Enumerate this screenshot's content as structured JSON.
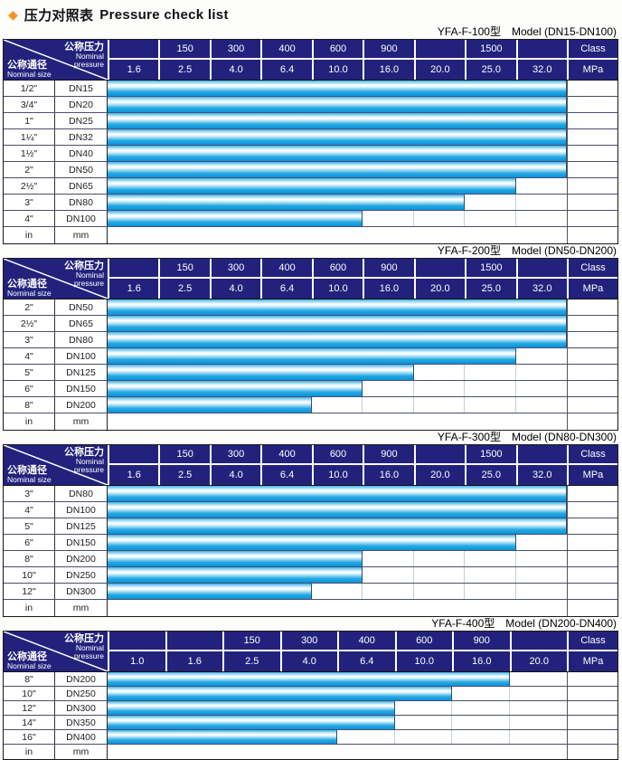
{
  "title": {
    "diamond_icon": "◆",
    "text_zh": "压力对照表",
    "text_en": "Pressure check list"
  },
  "corner": {
    "pressure_zh": "公称压力",
    "pressure_en_line1": "Nominal",
    "pressure_en_line2": "pressure",
    "size_zh": "公称通径",
    "size_en": "Nominal size"
  },
  "colors": {
    "header_bg": "#22227d",
    "bar_cyan": "#149fe1",
    "bar_highlight": "#ffffff",
    "diamond_orange": "#f7941d"
  },
  "tables": [
    {
      "model": "YFA-F-100型",
      "range": "Model (DN15-DN100)",
      "class_row": [
        "",
        "150",
        "300",
        "400",
        "600",
        "900",
        "",
        "1500",
        "",
        "Class"
      ],
      "mpa_row": [
        "1.6",
        "2.5",
        "4.0",
        "6.4",
        "10.0",
        "16.0",
        "20.0",
        "25.0",
        "32.0",
        "MPa"
      ],
      "rows": [
        {
          "inch": "1/2\"",
          "dn": "DN15",
          "bar_cols": 9
        },
        {
          "inch": "3/4\"",
          "dn": "DN20",
          "bar_cols": 9
        },
        {
          "inch": "1\"",
          "dn": "DN25",
          "bar_cols": 9
        },
        {
          "inch": "1¼\"",
          "dn": "DN32",
          "bar_cols": 9
        },
        {
          "inch": "1½\"",
          "dn": "DN40",
          "bar_cols": 9
        },
        {
          "inch": "2\"",
          "dn": "DN50",
          "bar_cols": 9
        },
        {
          "inch": "2½\"",
          "dn": "DN65",
          "bar_cols": 8
        },
        {
          "inch": "3\"",
          "dn": "DN80",
          "bar_cols": 7
        },
        {
          "inch": "4\"",
          "dn": "DN100",
          "bar_cols": 5
        },
        {
          "inch": "in",
          "dn": "mm",
          "bar_cols": 0,
          "unit_row": true
        }
      ]
    },
    {
      "model": "YFA-F-200型",
      "range": "Model (DN50-DN200)",
      "class_row": [
        "",
        "150",
        "300",
        "400",
        "600",
        "900",
        "",
        "1500",
        "",
        "Class"
      ],
      "mpa_row": [
        "1.6",
        "2.5",
        "4.0",
        "6.4",
        "10.0",
        "16.0",
        "20.0",
        "25.0",
        "32.0",
        "MPa"
      ],
      "rows": [
        {
          "inch": "2\"",
          "dn": "DN50",
          "bar_cols": 9
        },
        {
          "inch": "2½\"",
          "dn": "DN65",
          "bar_cols": 9
        },
        {
          "inch": "3\"",
          "dn": "DN80",
          "bar_cols": 9
        },
        {
          "inch": "4\"",
          "dn": "DN100",
          "bar_cols": 8
        },
        {
          "inch": "5\"",
          "dn": "DN125",
          "bar_cols": 6
        },
        {
          "inch": "6\"",
          "dn": "DN150",
          "bar_cols": 5
        },
        {
          "inch": "8\"",
          "dn": "DN200",
          "bar_cols": 4
        },
        {
          "inch": "in",
          "dn": "mm",
          "bar_cols": 0,
          "unit_row": true
        }
      ]
    },
    {
      "model": "YFA-F-300型",
      "range": "Model (DN80-DN300)",
      "class_row": [
        "",
        "150",
        "300",
        "400",
        "600",
        "900",
        "",
        "1500",
        "",
        "Class"
      ],
      "mpa_row": [
        "1.6",
        "2.5",
        "4.0",
        "6.4",
        "10.0",
        "16.0",
        "20.0",
        "25.0",
        "32.0",
        "MPa"
      ],
      "rows": [
        {
          "inch": "3\"",
          "dn": "DN80",
          "bar_cols": 9
        },
        {
          "inch": "4\"",
          "dn": "DN100",
          "bar_cols": 9
        },
        {
          "inch": "5\"",
          "dn": "DN125",
          "bar_cols": 9
        },
        {
          "inch": "6\"",
          "dn": "DN150",
          "bar_cols": 8
        },
        {
          "inch": "8\"",
          "dn": "DN200",
          "bar_cols": 5
        },
        {
          "inch": "10\"",
          "dn": "DN250",
          "bar_cols": 5
        },
        {
          "inch": "12\"",
          "dn": "DN300",
          "bar_cols": 4
        },
        {
          "inch": "in",
          "dn": "mm",
          "bar_cols": 0,
          "unit_row": true
        }
      ]
    },
    {
      "model": "YFA-F-400型",
      "range": "Model (DN200-DN400)",
      "class_row": [
        "",
        "",
        "150",
        "300",
        "400",
        "600",
        "900",
        "",
        "Class"
      ],
      "mpa_row": [
        "1.0",
        "1.6",
        "2.5",
        "4.0",
        "6.4",
        "10.0",
        "16.0",
        "20.0",
        "MPa"
      ],
      "compact": true,
      "rows": [
        {
          "inch": "8\"",
          "dn": "DN200",
          "bar_cols": 7
        },
        {
          "inch": "10\"",
          "dn": "DN250",
          "bar_cols": 6
        },
        {
          "inch": "12\"",
          "dn": "DN300",
          "bar_cols": 5
        },
        {
          "inch": "14\"",
          "dn": "DN350",
          "bar_cols": 5
        },
        {
          "inch": "16\"",
          "dn": "DN400",
          "bar_cols": 4
        },
        {
          "inch": "in",
          "dn": "mm",
          "bar_cols": 0,
          "unit_row": true
        }
      ]
    }
  ]
}
